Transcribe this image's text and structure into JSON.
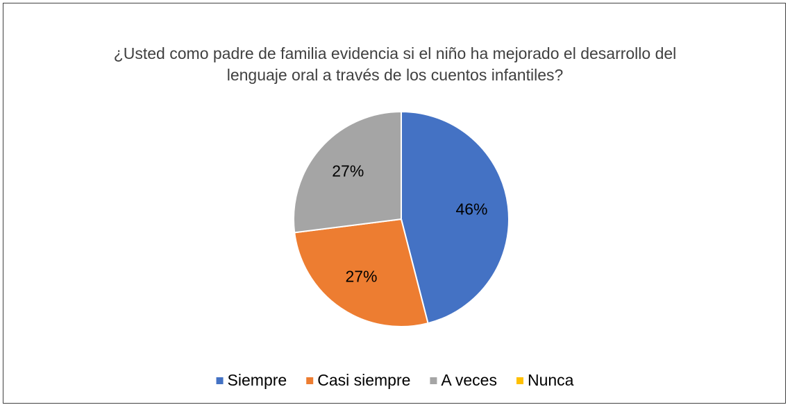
{
  "chart_data": {
    "type": "pie",
    "title": "¿Usted como padre de familia evidencia si el niño ha mejorado el desarrollo del lenguaje oral a través de los cuentos infantiles?",
    "categories": [
      "Siempre",
      "Casi siempre",
      "A veces",
      "Nunca"
    ],
    "values": [
      46,
      27,
      27,
      0
    ],
    "value_labels": [
      "46%",
      "27%",
      "27%",
      null
    ],
    "colors": [
      "#4472c4",
      "#ed7d31",
      "#a5a5a5",
      "#ffc000"
    ],
    "legend": "bottom"
  }
}
